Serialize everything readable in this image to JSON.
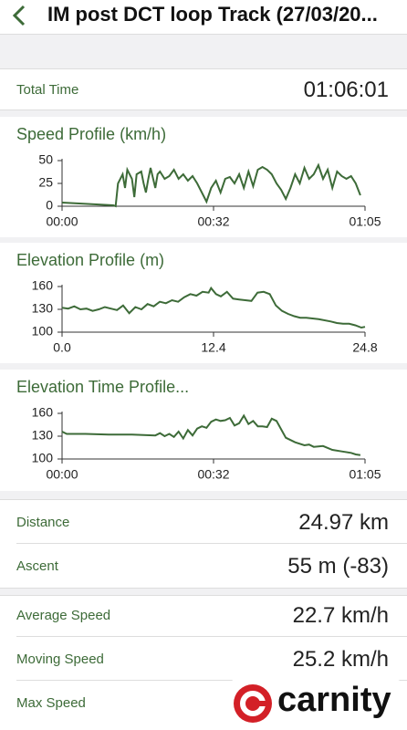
{
  "header": {
    "title": "IM post DCT loop Track (27/03/20..."
  },
  "total_time": {
    "label": "Total Time",
    "value": "01:06:01"
  },
  "chart_data": [
    {
      "type": "line",
      "title": "Speed Profile (km/h)",
      "color": "#3d6b38",
      "x": [
        0,
        11,
        11.5,
        12,
        13,
        13.5,
        14,
        15,
        15.5,
        16,
        17,
        17.5,
        18,
        18.5,
        19,
        20,
        20.5,
        21,
        22,
        23,
        24,
        25,
        26,
        27,
        28,
        29,
        30,
        31,
        32,
        33,
        34,
        35,
        36,
        37,
        38,
        39,
        40,
        41,
        42,
        43,
        44,
        45,
        46,
        47,
        48,
        49,
        50,
        51,
        52,
        53,
        54,
        55,
        56,
        57,
        58,
        59,
        60,
        61,
        62,
        63,
        64
      ],
      "values": [
        4,
        1,
        0,
        25,
        35,
        20,
        40,
        30,
        10,
        35,
        38,
        25,
        15,
        30,
        42,
        20,
        35,
        38,
        30,
        33,
        40,
        30,
        35,
        28,
        33,
        25,
        15,
        5,
        20,
        28,
        15,
        30,
        32,
        25,
        35,
        20,
        38,
        22,
        40,
        43,
        40,
        35,
        25,
        18,
        8,
        20,
        35,
        25,
        42,
        30,
        35,
        45,
        30,
        40,
        20,
        38,
        33,
        30,
        33,
        25,
        12
      ],
      "xlim": [
        0,
        65
      ],
      "xticks": [
        {
          "value": 0,
          "label": "00:00"
        },
        {
          "value": 32.5,
          "label": "00:32"
        },
        {
          "value": 65,
          "label": "01:05"
        }
      ],
      "ylim": [
        0,
        50
      ],
      "yticks": [
        0,
        25,
        50
      ]
    },
    {
      "type": "line",
      "title": "Elevation Profile (m)",
      "color": "#3d6b38",
      "x": [
        0,
        0.5,
        1,
        1.5,
        2,
        2.5,
        3,
        3.5,
        4,
        4.5,
        5,
        5.5,
        6,
        6.5,
        7,
        7.5,
        8,
        8.5,
        9,
        9.5,
        10,
        10.5,
        11,
        11.5,
        12,
        12.2,
        12.6,
        13,
        13.5,
        14,
        14.5,
        15,
        15.5,
        16,
        16.5,
        17,
        17.5,
        18,
        18.5,
        19,
        19.5,
        20,
        21,
        22,
        22.5,
        23,
        23.5,
        24,
        24.5,
        24.8
      ],
      "values": [
        132,
        131,
        134,
        130,
        131,
        128,
        130,
        133,
        131,
        129,
        135,
        125,
        133,
        130,
        137,
        134,
        140,
        138,
        142,
        140,
        146,
        150,
        148,
        153,
        152,
        158,
        150,
        147,
        153,
        144,
        143,
        142,
        141,
        152,
        153,
        150,
        135,
        128,
        124,
        121,
        119,
        119,
        117,
        114,
        112,
        111,
        111,
        109,
        106,
        107
      ],
      "xlim": [
        0,
        24.8
      ],
      "xticks": [
        {
          "value": 0,
          "label": "0.0"
        },
        12.4,
        24.8
      ],
      "ylim": [
        100,
        160
      ],
      "yticks": [
        100,
        130,
        160
      ]
    },
    {
      "type": "line",
      "title": "Elevation Time Profile...",
      "color": "#3d6b38",
      "x": [
        0,
        1,
        5,
        10,
        15,
        20,
        21,
        22,
        23,
        24,
        25,
        26,
        27,
        28,
        29,
        30,
        31,
        32,
        33,
        34,
        35,
        36,
        37,
        38,
        39,
        40,
        41,
        42,
        43,
        44,
        45,
        46,
        48,
        50,
        52,
        53,
        54,
        56,
        58,
        60,
        62,
        63,
        64
      ],
      "values": [
        136,
        133,
        133,
        132,
        132,
        131,
        134,
        130,
        133,
        129,
        136,
        127,
        138,
        131,
        140,
        143,
        141,
        149,
        152,
        150,
        151,
        154,
        144,
        147,
        157,
        146,
        150,
        143,
        143,
        142,
        153,
        150,
        128,
        122,
        118,
        119,
        116,
        117,
        112,
        110,
        108,
        106,
        105
      ],
      "xlim": [
        0,
        65
      ],
      "xticks": [
        {
          "value": 0,
          "label": "00:00"
        },
        {
          "value": 32.5,
          "label": "00:32"
        },
        {
          "value": 65,
          "label": "01:05"
        }
      ],
      "ylim": [
        100,
        160
      ],
      "yticks": [
        100,
        130,
        160
      ]
    }
  ],
  "stats": [
    {
      "label": "Distance",
      "value": "24.97 km"
    },
    {
      "label": "Ascent",
      "value": "55 m (-83)"
    },
    {
      "label": "Average Speed",
      "value": "22.7 km/h"
    },
    {
      "label": "Moving Speed",
      "value": "25.2 km/h"
    },
    {
      "label": "Max Speed"
    }
  ],
  "watermark": "carnity"
}
